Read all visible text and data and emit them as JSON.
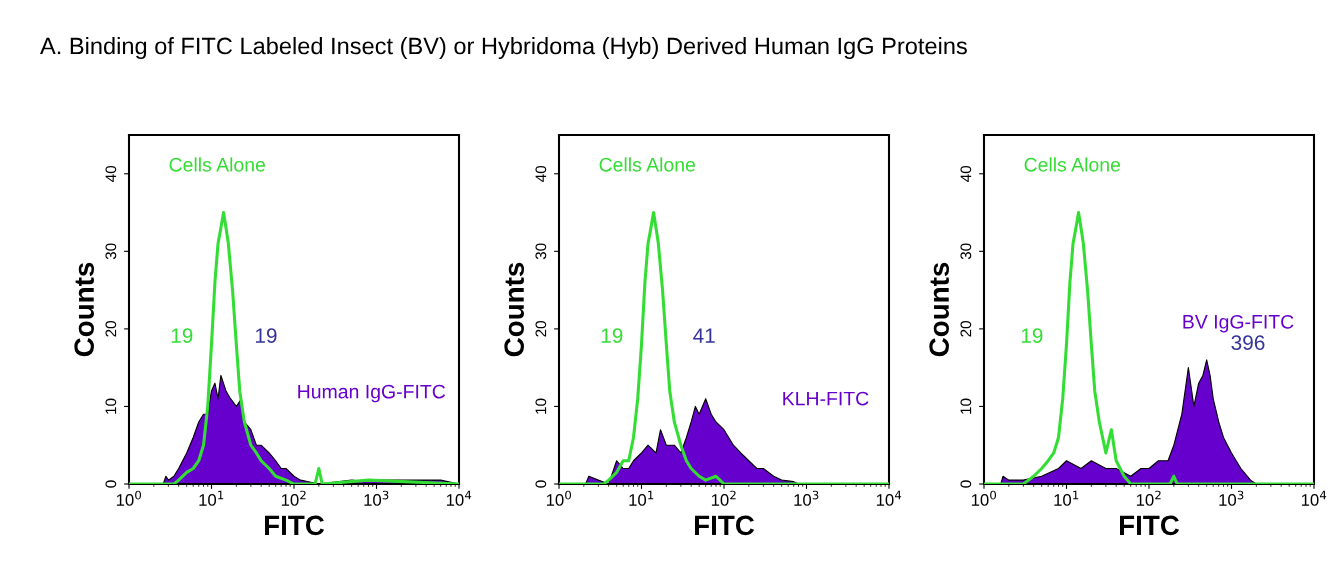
{
  "chart_data": [
    {
      "type": "area",
      "title": "A. Binding of FITC Labeled Insect (BV) or Hybridoma (Hyb) Derived Human IgG Proteins",
      "xlabel": "FITC",
      "ylabel": "Counts",
      "log": "x",
      "xlim": [
        1,
        10000
      ],
      "xticks": [
        {
          "value": 1,
          "label": "10$^{0}$"
        },
        {
          "value": 10,
          "label": "10$^{1}$"
        },
        {
          "value": 100,
          "label": "10$^{2}$"
        },
        {
          "value": 1000,
          "label": "10$^{3}$"
        },
        {
          "value": 10000,
          "label": "10$^{4}$"
        }
      ],
      "ylim": [
        0,
        45
      ],
      "yticks": [
        0,
        10,
        20,
        30,
        40
      ],
      "grid": false,
      "legend": false,
      "series": [
        {
          "name": "Human IgG-FITC",
          "color": "#6600cc",
          "x": [
            1,
            2.6,
            2.8,
            3,
            3.5,
            4,
            5,
            6,
            7,
            8,
            9,
            10,
            11,
            12,
            13,
            15,
            17,
            20,
            23,
            25,
            30,
            35,
            40,
            50,
            60,
            70,
            80,
            100,
            120,
            150,
            200,
            500,
            700,
            1000,
            6000,
            10000
          ],
          "values": [
            0,
            0,
            1,
            0.5,
            1,
            2,
            4,
            6,
            8,
            9,
            9,
            12,
            13,
            11,
            14,
            12,
            11,
            10,
            11,
            8,
            7,
            5,
            5,
            4,
            3,
            2,
            2,
            1,
            0.5,
            0.3,
            0,
            0.5,
            0.3,
            0.5,
            0.5,
            0
          ]
        },
        {
          "name": "Cells Alone",
          "type": "line",
          "color": "#33dd33",
          "x": [
            1,
            3.5,
            4,
            5,
            6,
            7,
            8,
            9,
            10,
            11,
            12,
            13,
            14,
            15,
            16,
            18,
            20,
            22,
            25,
            30,
            35,
            40,
            50,
            60,
            80,
            100,
            180,
            200,
            220,
            800,
            10000
          ],
          "values": [
            0,
            0,
            0.5,
            1.5,
            2,
            3,
            5,
            10,
            18,
            26,
            31,
            33,
            35,
            33,
            31,
            25,
            18,
            12,
            8,
            5,
            4,
            3,
            2,
            1,
            0.5,
            0,
            0,
            2,
            0,
            0.5,
            0
          ]
        }
      ],
      "annotations": [
        "19",
        "19"
      ]
    },
    {
      "type": "area",
      "xlabel": "FITC",
      "ylabel": "Counts",
      "log": "x",
      "xlim": [
        1,
        10000
      ],
      "xticks": [
        {
          "value": 1,
          "label": "10$^{0}$"
        },
        {
          "value": 10,
          "label": "10$^{1}$"
        },
        {
          "value": 100,
          "label": "10$^{2}$"
        },
        {
          "value": 1000,
          "label": "10$^{3}$"
        },
        {
          "value": 10000,
          "label": "10$^{4}$"
        }
      ],
      "ylim": [
        0,
        45
      ],
      "yticks": [
        0,
        10,
        20,
        30,
        40
      ],
      "grid": false,
      "legend": false,
      "series": [
        {
          "name": "KLH-FITC",
          "color": "#6600cc",
          "x": [
            1,
            2.1,
            2.3,
            3,
            4,
            5,
            6,
            7,
            8,
            10,
            12,
            15,
            17,
            20,
            25,
            30,
            35,
            40,
            45,
            50,
            60,
            70,
            80,
            100,
            130,
            160,
            200,
            250,
            300,
            400,
            500,
            700,
            800,
            10000
          ],
          "values": [
            0,
            0,
            1,
            0.5,
            0,
            3,
            2,
            2,
            3,
            4,
            5,
            4,
            7,
            5,
            5,
            4,
            6,
            8,
            10,
            9,
            11,
            9,
            8,
            7,
            5,
            4,
            3,
            2,
            2,
            1,
            0.5,
            0.3,
            0,
            0
          ]
        },
        {
          "name": "Cells Alone",
          "type": "line",
          "color": "#33dd33",
          "x": [
            1,
            3.5,
            4,
            5,
            6,
            7,
            8,
            9,
            10,
            11,
            12,
            13,
            14,
            15,
            16,
            18,
            20,
            22,
            25,
            30,
            35,
            40,
            50,
            60,
            80,
            100,
            10000
          ],
          "values": [
            0,
            0,
            0.5,
            1.5,
            3,
            3,
            6,
            11,
            18,
            26,
            31,
            33,
            35,
            33,
            31,
            25,
            18,
            12,
            8,
            5,
            3,
            2,
            1,
            0.5,
            1,
            0,
            0
          ]
        }
      ],
      "annotations": [
        "19",
        "41"
      ]
    },
    {
      "type": "area",
      "xlabel": "FITC",
      "ylabel": "Counts",
      "log": "x",
      "xlim": [
        1,
        10000
      ],
      "xticks": [
        {
          "value": 1,
          "label": "10$^{0}$"
        },
        {
          "value": 10,
          "label": "10$^{1}$"
        },
        {
          "value": 100,
          "label": "10$^{2}$"
        },
        {
          "value": 1000,
          "label": "10$^{3}$"
        },
        {
          "value": 10000,
          "label": "10$^{4}$"
        }
      ],
      "ylim": [
        0,
        45
      ],
      "yticks": [
        0,
        10,
        20,
        30,
        40
      ],
      "grid": false,
      "legend": false,
      "series": [
        {
          "name": "BV IgG-FITC",
          "color": "#6600cc",
          "x": [
            1,
            1.6,
            1.7,
            2,
            3,
            5,
            8,
            10,
            15,
            20,
            30,
            40,
            60,
            80,
            100,
            130,
            170,
            200,
            250,
            300,
            350,
            400,
            450,
            500,
            550,
            600,
            700,
            800,
            1000,
            1300,
            1700,
            2000,
            10000
          ],
          "values": [
            0,
            0,
            1,
            0.5,
            0.5,
            1,
            2,
            3,
            2,
            3,
            2,
            2,
            1,
            2,
            2,
            3,
            3,
            5,
            9,
            15,
            10,
            13,
            14,
            16,
            14,
            11,
            8,
            6,
            4,
            2,
            0.5,
            0,
            0
          ]
        },
        {
          "name": "Cells Alone",
          "type": "line",
          "color": "#33dd33",
          "x": [
            1,
            3,
            4,
            5,
            6,
            7,
            8,
            9,
            10,
            11,
            12,
            13,
            14,
            15,
            16,
            18,
            20,
            22,
            25,
            30,
            35,
            40,
            50,
            60,
            100,
            180,
            200,
            220,
            10000
          ],
          "values": [
            0,
            0,
            1,
            2,
            3,
            4,
            6,
            11,
            18,
            26,
            31,
            33,
            35,
            33,
            31,
            25,
            18,
            12,
            8,
            4,
            7,
            3,
            1,
            0,
            0,
            0,
            1,
            0,
            0
          ]
        }
      ],
      "annotations": [
        "19",
        "396"
      ]
    }
  ]
}
